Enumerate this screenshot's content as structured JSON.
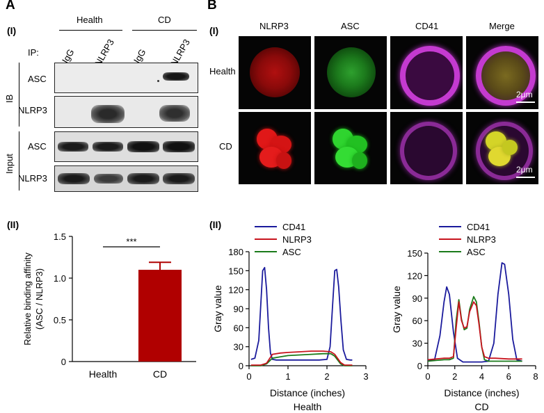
{
  "panel_a": {
    "letter": "A",
    "sub": "(I)",
    "groups": [
      "Health",
      "CD"
    ],
    "ip_label": "IP:",
    "lanes": [
      "IgG",
      "NLRP3",
      "IgG",
      "NLRP3"
    ],
    "ib_label": "IB",
    "input_label": "Input",
    "rows": [
      "ASC",
      "NLRP3",
      "ASC",
      "NLRP3"
    ]
  },
  "panel_b": {
    "letter": "B",
    "sub": "(I)",
    "columns": [
      "NLRP3",
      "ASC",
      "CD41",
      "Merge"
    ],
    "rows": [
      "Health",
      "CD"
    ],
    "scale_bar": "2μm"
  },
  "panel_a2": {
    "sub": "(II)"
  },
  "panel_b2": {
    "sub": "(II)"
  },
  "colors": {
    "bar": "#b00000",
    "cd41": "#1a1a9c",
    "nlrp3": "#c8141e",
    "asc": "#1a7a1a"
  },
  "chart_data": [
    {
      "type": "bar",
      "categories": [
        "Health",
        "CD"
      ],
      "values": [
        0,
        1.1
      ],
      "error": [
        0,
        0.09
      ],
      "ylabel": "Relative binding affinity\n(ASC / NLRP3)",
      "ylim": [
        0,
        1.5
      ],
      "yticks": [
        "0",
        "0.5",
        "1.0",
        "1.5"
      ],
      "significance": "***"
    },
    {
      "type": "line",
      "title": "Health",
      "xlabel": "Distance (inches)",
      "ylabel": "Gray value",
      "xlim": [
        0,
        3
      ],
      "ylim": [
        0,
        180
      ],
      "xticks": [
        "0",
        "1",
        "2",
        "3"
      ],
      "yticks": [
        "0",
        "30",
        "60",
        "90",
        "120",
        "150",
        "180"
      ],
      "series": [
        {
          "name": "CD41",
          "x": [
            0.05,
            0.15,
            0.25,
            0.3,
            0.35,
            0.4,
            0.45,
            0.5,
            0.55,
            0.6,
            0.7,
            0.9,
            1.2,
            1.5,
            1.8,
            2.0,
            2.08,
            2.14,
            2.2,
            2.25,
            2.3,
            2.36,
            2.42,
            2.5,
            2.6,
            2.65
          ],
          "y": [
            10,
            12,
            40,
            95,
            150,
            155,
            120,
            60,
            20,
            10,
            9,
            9,
            9,
            9,
            9,
            10,
            30,
            90,
            150,
            152,
            125,
            70,
            25,
            10,
            9,
            9
          ]
        },
        {
          "name": "NLRP3",
          "x": [
            0.05,
            0.3,
            0.45,
            0.6,
            0.8,
            1.0,
            1.3,
            1.6,
            1.9,
            2.1,
            2.2,
            2.35,
            2.45,
            2.65
          ],
          "y": [
            1,
            1,
            4,
            18,
            20,
            21,
            22,
            23,
            23,
            22,
            18,
            5,
            1,
            1
          ]
        },
        {
          "name": "ASC",
          "x": [
            0.05,
            0.3,
            0.45,
            0.6,
            0.8,
            1.0,
            1.3,
            1.6,
            1.9,
            2.1,
            2.2,
            2.35,
            2.45,
            2.65
          ],
          "y": [
            0,
            0,
            3,
            12,
            14,
            16,
            17,
            18,
            19,
            19,
            15,
            3,
            0,
            0
          ]
        }
      ]
    },
    {
      "type": "line",
      "title": "CD",
      "xlabel": "Distance (inches)",
      "ylabel": "Gray value",
      "xlim": [
        0,
        8
      ],
      "ylim": [
        0,
        150
      ],
      "xticks": [
        "0",
        "2",
        "4",
        "6",
        "8"
      ],
      "yticks": [
        "0",
        "30",
        "60",
        "90",
        "120",
        "150"
      ],
      "series": [
        {
          "name": "CD41",
          "x": [
            0,
            0.5,
            0.9,
            1.2,
            1.4,
            1.6,
            1.9,
            2.2,
            2.6,
            3.0,
            4.0,
            4.5,
            4.9,
            5.2,
            5.5,
            5.7,
            6.0,
            6.3,
            6.6,
            7.0
          ],
          "y": [
            7,
            8,
            40,
            85,
            105,
            95,
            45,
            10,
            5,
            5,
            5,
            6,
            30,
            95,
            137,
            135,
            95,
            35,
            8,
            6
          ]
        },
        {
          "name": "NLRP3",
          "x": [
            0,
            0.6,
            1.2,
            1.6,
            1.9,
            2.1,
            2.3,
            2.5,
            2.7,
            2.9,
            3.1,
            3.4,
            3.6,
            3.8,
            4.0,
            4.2,
            4.5,
            5.0,
            6.0,
            7.0
          ],
          "y": [
            8,
            9,
            10,
            10,
            12,
            50,
            85,
            60,
            50,
            52,
            72,
            85,
            80,
            55,
            25,
            12,
            10,
            10,
            9,
            9
          ]
        },
        {
          "name": "ASC",
          "x": [
            0,
            0.6,
            1.2,
            1.6,
            1.9,
            2.1,
            2.3,
            2.5,
            2.7,
            2.9,
            3.1,
            3.4,
            3.6,
            3.8,
            4.0,
            4.2,
            4.5,
            5.0,
            6.0,
            7.0
          ],
          "y": [
            6,
            7,
            8,
            8,
            10,
            60,
            88,
            62,
            48,
            50,
            75,
            92,
            85,
            58,
            25,
            8,
            6,
            6,
            6,
            6
          ]
        }
      ]
    }
  ]
}
